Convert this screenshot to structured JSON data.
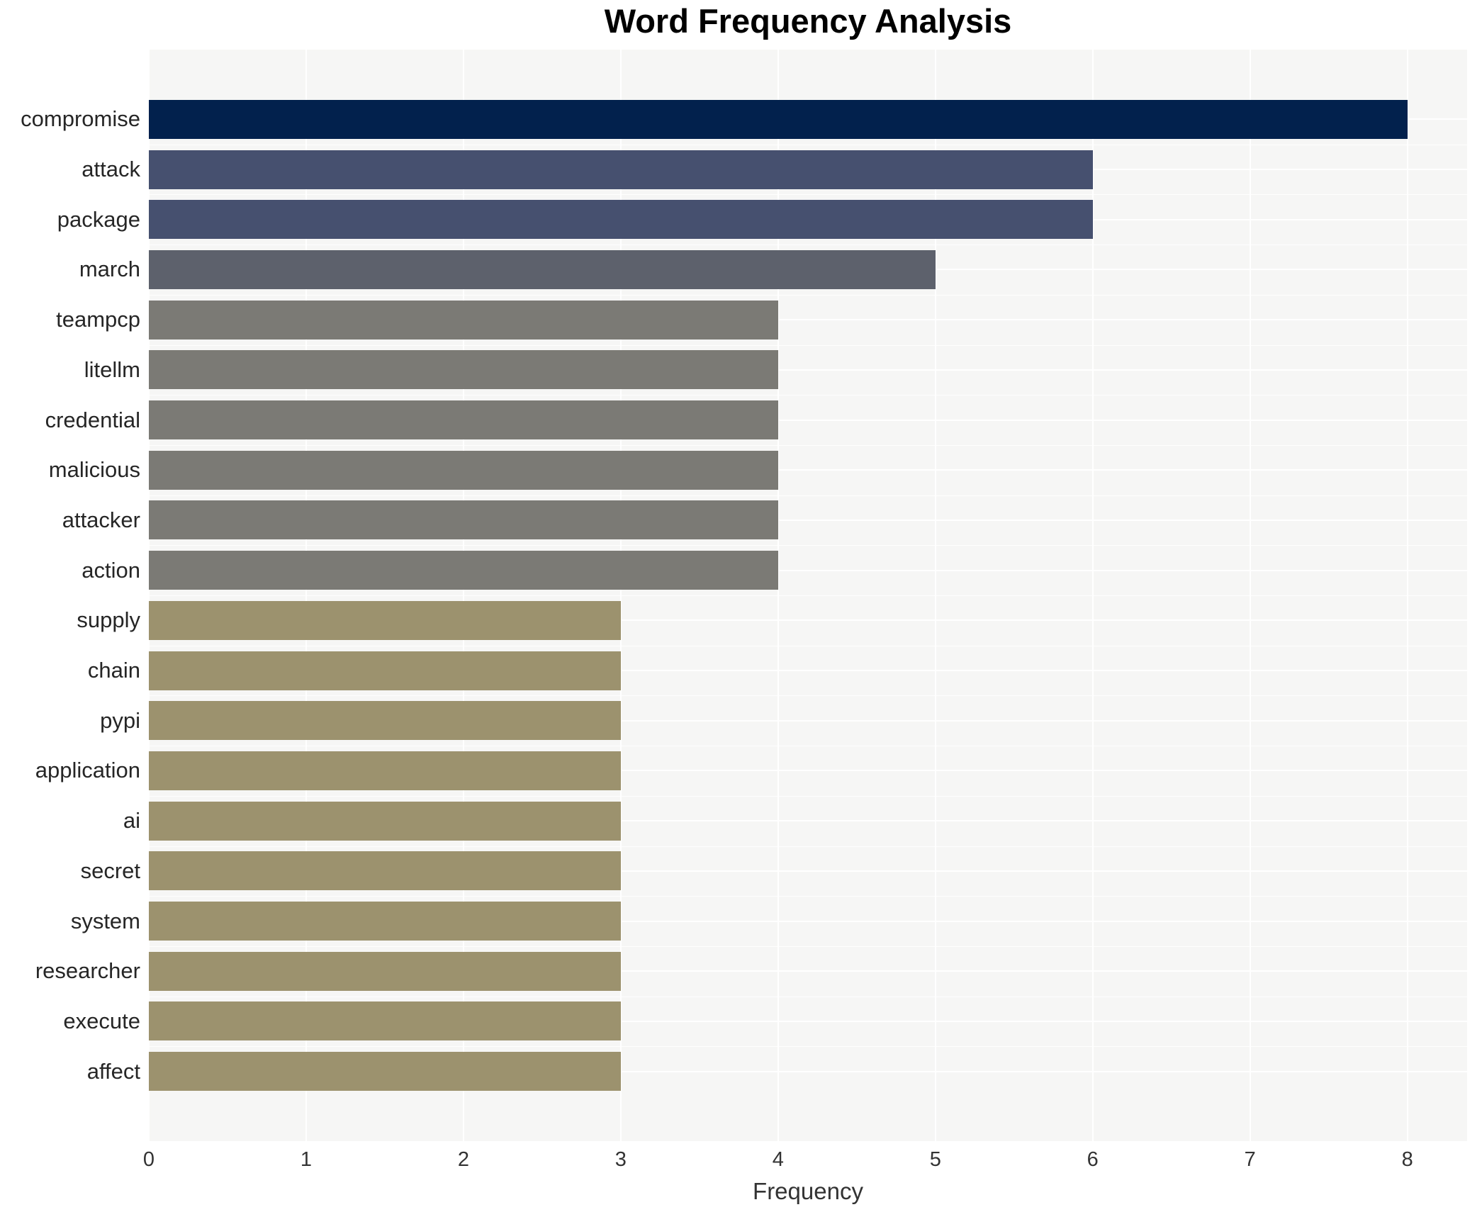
{
  "chart_data": {
    "type": "bar",
    "orientation": "horizontal",
    "title": "Word Frequency Analysis",
    "xlabel": "Frequency",
    "ylabel": "",
    "categories": [
      "compromise",
      "attack",
      "package",
      "march",
      "teampcp",
      "litellm",
      "credential",
      "malicious",
      "attacker",
      "action",
      "supply",
      "chain",
      "pypi",
      "application",
      "ai",
      "secret",
      "system",
      "researcher",
      "execute",
      "affect"
    ],
    "values": [
      8,
      6,
      6,
      5,
      4,
      4,
      4,
      4,
      4,
      4,
      3,
      3,
      3,
      3,
      3,
      3,
      3,
      3,
      3,
      3
    ],
    "bar_colors": [
      "#02214d",
      "#46506f",
      "#46506f",
      "#5d616c",
      "#7b7a75",
      "#7b7a75",
      "#7b7a75",
      "#7b7a75",
      "#7b7a75",
      "#7b7a75",
      "#9c926e",
      "#9c926e",
      "#9c926e",
      "#9c926e",
      "#9c926e",
      "#9c926e",
      "#9c926e",
      "#9c926e",
      "#9c926e",
      "#9c926e"
    ],
    "xticks": [
      0,
      1,
      2,
      3,
      4,
      5,
      6,
      7,
      8
    ],
    "xlim": [
      0,
      8.38
    ],
    "grid": true,
    "legend": "none",
    "colors": {
      "plot_background": "#f6f6f5",
      "gridline": "#ffffff",
      "category_label_text": "#262626",
      "tick_label_text": "#333333",
      "title_text": "#000000",
      "value_8_bar": "#02214d",
      "value_6_bar": "#46506f",
      "value_5_bar": "#5d616c",
      "value_4_bar": "#7b7a75",
      "value_3_bar": "#9c926e"
    }
  }
}
